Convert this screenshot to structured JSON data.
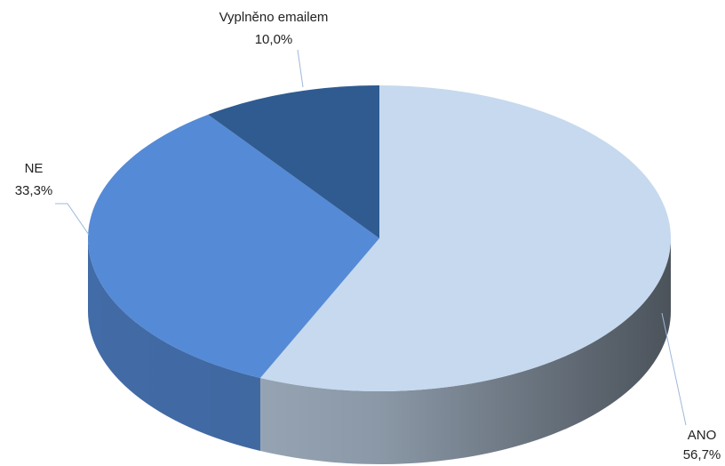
{
  "chart_data": {
    "type": "pie3d",
    "categories": [
      "ANO",
      "NE",
      "Vyplněno emailem"
    ],
    "values": [
      56.7,
      33.3,
      10.0
    ],
    "value_labels": [
      "56,7%",
      "33,3%",
      "10,0%"
    ],
    "colors": [
      "#c6d9ee",
      "#558ad6",
      "#2f5b91"
    ]
  }
}
